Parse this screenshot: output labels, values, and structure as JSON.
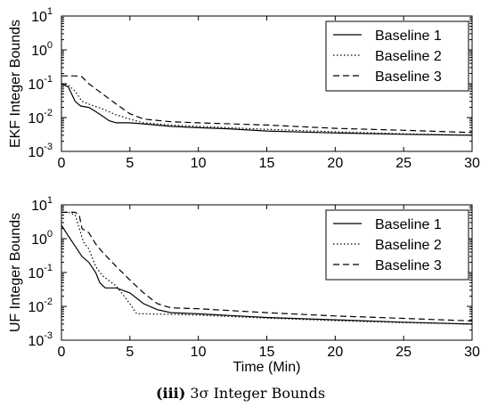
{
  "caption": {
    "label": "(iii)",
    "text": "3σ Integer Bounds"
  },
  "chart_data": [
    {
      "type": "line",
      "ylabel": "EKF Integer Bounds",
      "xlabel": "",
      "xlim": [
        0,
        30
      ],
      "ylim": [
        0.001,
        10
      ],
      "yscale": "log",
      "xticks": [
        "0",
        "5",
        "10",
        "15",
        "20",
        "25",
        "30"
      ],
      "yticks": [
        {
          "base": "10",
          "exp": "-3"
        },
        {
          "base": "10",
          "exp": "-2"
        },
        {
          "base": "10",
          "exp": "-1"
        },
        {
          "base": "10",
          "exp": "0"
        },
        {
          "base": "10",
          "exp": "1"
        }
      ],
      "legend": "top-right",
      "series": [
        {
          "name": "Baseline 1",
          "style": "solid",
          "x": [
            0,
            0.5,
            1,
            1.4,
            2,
            2.5,
            3,
            3.5,
            4,
            5,
            6,
            8,
            10,
            12,
            15,
            20,
            25,
            30
          ],
          "y": [
            0.1,
            0.08,
            0.03,
            0.022,
            0.02,
            0.015,
            0.011,
            0.008,
            0.007,
            0.007,
            0.0065,
            0.0055,
            0.005,
            0.0047,
            0.004,
            0.0035,
            0.0032,
            0.003
          ]
        },
        {
          "name": "Baseline 2",
          "style": "dotted",
          "x": [
            0,
            0.5,
            1,
            1.5,
            2,
            3,
            4,
            5,
            6,
            8,
            10,
            15,
            20,
            25,
            30
          ],
          "y": [
            0.1,
            0.09,
            0.06,
            0.03,
            0.025,
            0.018,
            0.012,
            0.009,
            0.007,
            0.006,
            0.0055,
            0.0045,
            0.0038,
            0.0033,
            0.003
          ]
        },
        {
          "name": "Baseline 3",
          "style": "dashed",
          "x": [
            0,
            0.5,
            1,
            1.5,
            2,
            3,
            4,
            5,
            6,
            8,
            10,
            15,
            20,
            25,
            30
          ],
          "y": [
            0.17,
            0.17,
            0.17,
            0.16,
            0.1,
            0.05,
            0.025,
            0.013,
            0.009,
            0.0075,
            0.007,
            0.006,
            0.0048,
            0.0042,
            0.0036
          ]
        }
      ]
    },
    {
      "type": "line",
      "ylabel": "UF Integer Bounds",
      "xlabel": "Time (Min)",
      "xlim": [
        0,
        30
      ],
      "ylim": [
        0.001,
        10
      ],
      "yscale": "log",
      "xticks": [
        "0",
        "5",
        "10",
        "15",
        "20",
        "25",
        "30"
      ],
      "yticks": [
        {
          "base": "10",
          "exp": "-3"
        },
        {
          "base": "10",
          "exp": "-2"
        },
        {
          "base": "10",
          "exp": "-1"
        },
        {
          "base": "10",
          "exp": "0"
        },
        {
          "base": "10",
          "exp": "1"
        }
      ],
      "legend": "top-right",
      "series": [
        {
          "name": "Baseline 1",
          "style": "solid",
          "x": [
            0,
            0.5,
            1,
            1.5,
            2,
            2.5,
            2.8,
            3.2,
            4,
            5,
            6,
            7,
            8,
            10,
            15,
            20,
            25,
            30
          ],
          "y": [
            2.5,
            1.2,
            0.6,
            0.3,
            0.2,
            0.1,
            0.05,
            0.035,
            0.035,
            0.025,
            0.012,
            0.008,
            0.0065,
            0.006,
            0.0047,
            0.004,
            0.0034,
            0.003
          ]
        },
        {
          "name": "Baseline 2",
          "style": "dotted",
          "x": [
            0,
            0.5,
            1,
            1.3,
            1.6,
            2,
            2.5,
            3,
            4,
            5,
            5.5,
            6,
            8,
            10,
            15,
            20,
            25,
            30
          ],
          "y": [
            6,
            6,
            5,
            2,
            0.8,
            0.5,
            0.15,
            0.08,
            0.04,
            0.012,
            0.006,
            0.006,
            0.0058,
            0.0055,
            0.0045,
            0.0038,
            0.0033,
            0.003
          ]
        },
        {
          "name": "Baseline 3",
          "style": "dashed",
          "x": [
            0,
            0.5,
            1,
            1.3,
            1.5,
            2,
            2.5,
            3,
            4,
            5,
            6,
            7,
            8,
            10,
            15,
            20,
            25,
            30
          ],
          "y": [
            6,
            6,
            6,
            5,
            2,
            1.5,
            0.7,
            0.4,
            0.15,
            0.06,
            0.025,
            0.012,
            0.009,
            0.0085,
            0.0065,
            0.0052,
            0.0044,
            0.0037
          ]
        }
      ]
    }
  ]
}
